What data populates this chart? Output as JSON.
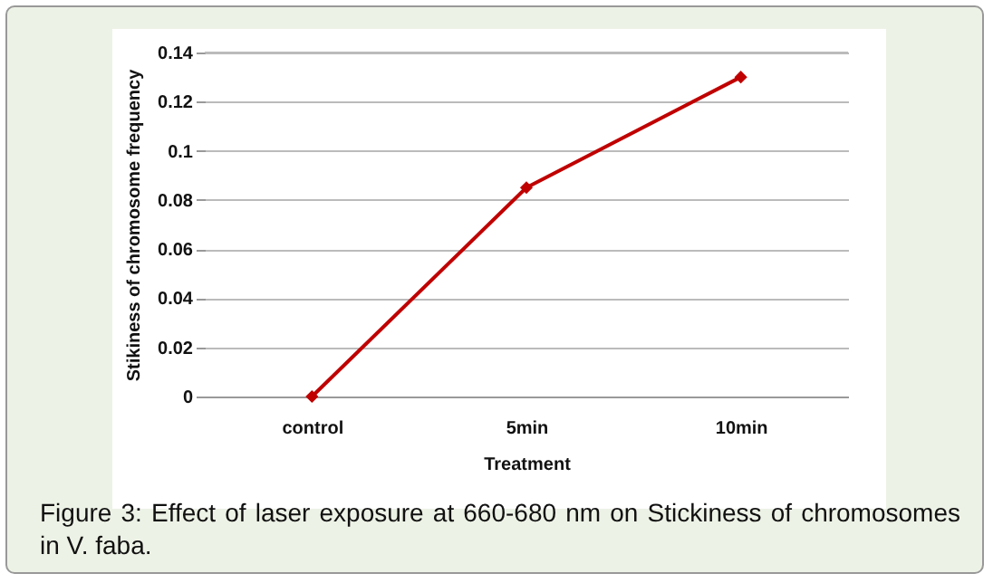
{
  "chart_data": {
    "type": "line",
    "xlabel": "Treatment",
    "ylabel": "Stikiness of chromosome frequency",
    "categories": [
      "control",
      "5min",
      "10min"
    ],
    "series": [
      {
        "color": "#c00000",
        "values": [
          0,
          0.085,
          0.13
        ]
      }
    ],
    "ylim": [
      0,
      0.14
    ],
    "yticks": [
      0,
      0.02,
      0.04,
      0.06,
      0.08,
      0.1,
      0.12,
      0.14
    ],
    "grid": "y",
    "marker": "diamond",
    "line_style": "solid",
    "annotations": [
      "Figure 3: Effect of laser exposure at 660-680 nm on Stickiness of chromosomes in V. faba."
    ]
  }
}
